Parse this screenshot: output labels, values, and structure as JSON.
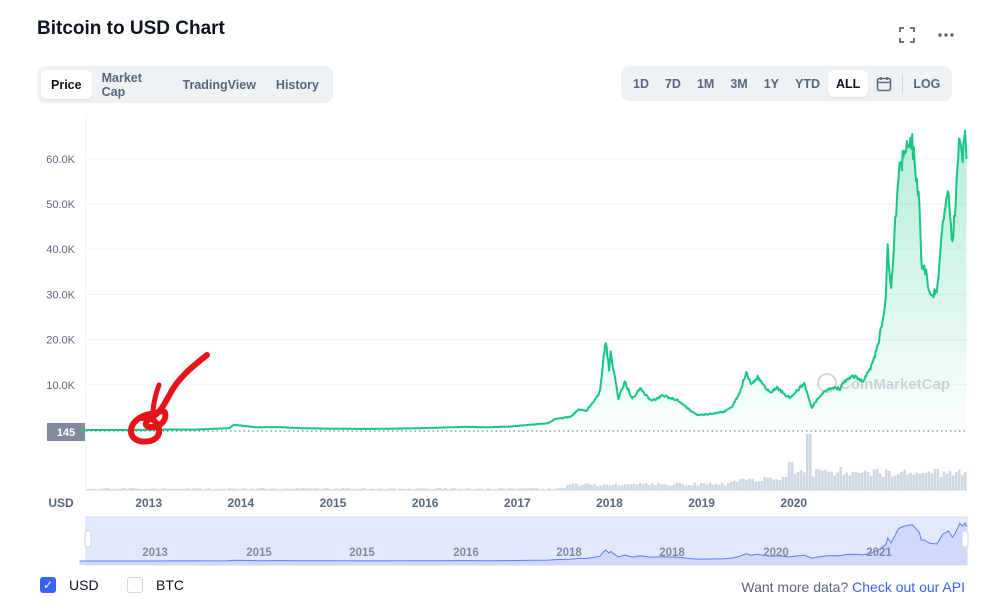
{
  "header": {
    "title": "Bitcoin to USD Chart",
    "expand_icon": "fullscreen-icon",
    "more_icon": "more-horizontal-icon"
  },
  "tabs": [
    "Price",
    "Market Cap",
    "TradingView",
    "History"
  ],
  "active_tab": "Price",
  "ranges": [
    "1D",
    "7D",
    "1M",
    "3M",
    "1Y",
    "YTD",
    "ALL"
  ],
  "active_range": "ALL",
  "calendar_icon": "calendar-icon",
  "log_label": "LOG",
  "watermark": "CoinMarketCap",
  "colors": {
    "line": "#16c784",
    "fill": "#16c784",
    "volume": "#cfd6e4",
    "navigator_fill": "#e3e9fd",
    "navigator_line": "#5b7ef5",
    "accent": "#3861fb",
    "annotation": "#e3141a"
  },
  "legend": {
    "usd": "USD",
    "btc": "BTC",
    "usd_checked": true,
    "btc_checked": false
  },
  "api_text": {
    "prefix": "Want more data?",
    "link": "Check out our API"
  },
  "chart_data": {
    "type": "area",
    "x_axis_name": "USD",
    "current_price_label": "145",
    "y_ticks": [
      "10.0K",
      "20.0K",
      "30.0K",
      "40.0K",
      "50.0K",
      "60.0K"
    ],
    "ylim": [
      0,
      70000
    ],
    "x_ticks": [
      "2013",
      "2014",
      "2015",
      "2016",
      "2017",
      "2018",
      "2019",
      "2020"
    ],
    "xlim": [
      "2012-04",
      "2021-11"
    ],
    "navigator_ticks": [
      "2013",
      "2015",
      "2015",
      "2016",
      "2018",
      "2018",
      "2020",
      "2021"
    ],
    "grid": true,
    "series": [
      {
        "name": "USD",
        "points": [
          [
            "2012-04-01",
            5
          ],
          [
            "2012-10-01",
            11
          ],
          [
            "2013-01-01",
            13
          ],
          [
            "2013-04-01",
            130
          ],
          [
            "2013-07-01",
            90
          ],
          [
            "2013-11-15",
            400
          ],
          [
            "2013-12-04",
            1150
          ],
          [
            "2014-03-01",
            600
          ],
          [
            "2014-06-01",
            640
          ],
          [
            "2014-09-01",
            400
          ],
          [
            "2015-01-01",
            280
          ],
          [
            "2015-06-01",
            240
          ],
          [
            "2015-11-01",
            350
          ],
          [
            "2016-01-01",
            430
          ],
          [
            "2016-06-15",
            700
          ],
          [
            "2016-09-01",
            600
          ],
          [
            "2016-12-01",
            760
          ],
          [
            "2017-03-01",
            1200
          ],
          [
            "2017-05-01",
            1500
          ],
          [
            "2017-06-01",
            2500
          ],
          [
            "2017-08-01",
            2900
          ],
          [
            "2017-09-01",
            4600
          ],
          [
            "2017-10-01",
            4300
          ],
          [
            "2017-11-01",
            6400
          ],
          [
            "2017-11-25",
            8500
          ],
          [
            "2017-12-08",
            16000
          ],
          [
            "2017-12-17",
            19500
          ],
          [
            "2017-12-30",
            13500
          ],
          [
            "2018-01-06",
            17000
          ],
          [
            "2018-02-06",
            6900
          ],
          [
            "2018-03-01",
            10500
          ],
          [
            "2018-04-01",
            6900
          ],
          [
            "2018-05-01",
            9200
          ],
          [
            "2018-06-15",
            6400
          ],
          [
            "2018-08-01",
            7600
          ],
          [
            "2018-10-01",
            6500
          ],
          [
            "2018-11-25",
            4000
          ],
          [
            "2018-12-15",
            3300
          ],
          [
            "2019-02-01",
            3500
          ],
          [
            "2019-04-01",
            4100
          ],
          [
            "2019-05-01",
            5300
          ],
          [
            "2019-06-01",
            8500
          ],
          [
            "2019-06-26",
            12800
          ],
          [
            "2019-07-15",
            10000
          ],
          [
            "2019-08-10",
            11800
          ],
          [
            "2019-09-01",
            10000
          ],
          [
            "2019-10-01",
            8300
          ],
          [
            "2019-10-26",
            9300
          ],
          [
            "2019-12-15",
            7100
          ],
          [
            "2020-02-12",
            10300
          ],
          [
            "2020-03-12",
            5000
          ],
          [
            "2020-04-01",
            6600
          ],
          [
            "2020-05-01",
            8700
          ],
          [
            "2020-06-01",
            9500
          ],
          [
            "2020-07-01",
            9100
          ],
          [
            "2020-08-01",
            11500
          ],
          [
            "2020-09-01",
            11900
          ],
          [
            "2020-10-01",
            10600
          ],
          [
            "2020-11-01",
            13700
          ],
          [
            "2020-12-01",
            19000
          ],
          [
            "2020-12-31",
            29000
          ],
          [
            "2021-01-08",
            40000
          ],
          [
            "2021-01-22",
            32000
          ],
          [
            "2021-02-21",
            57000
          ],
          [
            "2021-03-13",
            61000
          ],
          [
            "2021-04-14",
            63500
          ],
          [
            "2021-05-12",
            50000
          ],
          [
            "2021-05-19",
            37000
          ],
          [
            "2021-06-01",
            36500
          ],
          [
            "2021-06-22",
            31000
          ],
          [
            "2021-07-20",
            29800
          ],
          [
            "2021-08-14",
            47000
          ],
          [
            "2021-09-06",
            52600
          ],
          [
            "2021-09-21",
            41500
          ],
          [
            "2021-10-01",
            48000
          ],
          [
            "2021-10-20",
            66000
          ],
          [
            "2021-11-01",
            61000
          ],
          [
            "2021-11-10",
            66500
          ],
          [
            "2021-11-16",
            60000
          ]
        ]
      }
    ]
  }
}
